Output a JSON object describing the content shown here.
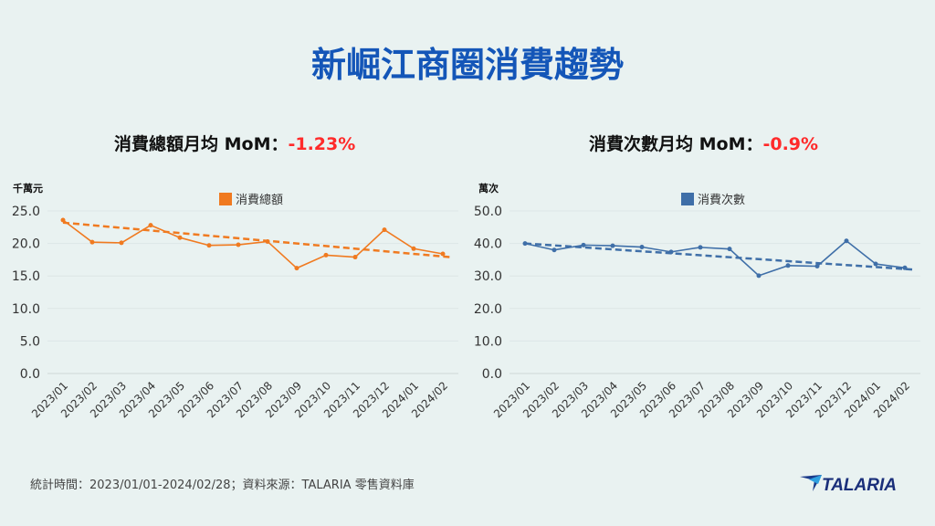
{
  "title": "新崛江商圈消費趨勢",
  "footer": "統計時間：2023/01/01-2024/02/28；資料來源：TALARIA 零售資料庫",
  "logo_text": "TALARIA",
  "chart_data": [
    {
      "type": "line",
      "subtitle": "消費總額月均  MoM：",
      "mom": "-1.23%",
      "ylabel": "千萬元",
      "categories": [
        "2023/01",
        "2023/02",
        "2023/03",
        "2023/04",
        "2023/05",
        "2023/06",
        "2023/07",
        "2023/08",
        "2023/09",
        "2023/10",
        "2023/11",
        "2023/12",
        "2024/01",
        "2024/02"
      ],
      "series": [
        {
          "name": "消費總額",
          "values": [
            23.6,
            20.2,
            20.1,
            22.8,
            20.9,
            19.7,
            19.8,
            20.3,
            16.2,
            18.2,
            17.9,
            22.1,
            19.2,
            18.4
          ]
        }
      ],
      "trendline": [
        23.2,
        17.9
      ],
      "ylim": [
        0,
        25
      ],
      "yticks": [
        "0.0",
        "5.0",
        "10.0",
        "15.0",
        "20.0",
        "25.0"
      ],
      "grid": true,
      "legend": "top-center",
      "color": "#f07a20"
    },
    {
      "type": "line",
      "subtitle": "消費次數月均  MoM：",
      "mom": "-0.9%",
      "ylabel": "萬次",
      "categories": [
        "2023/01",
        "2023/02",
        "2023/03",
        "2023/04",
        "2023/05",
        "2023/06",
        "2023/07",
        "2023/08",
        "2023/09",
        "2023/10",
        "2023/11",
        "2023/12",
        "2024/01",
        "2024/02"
      ],
      "series": [
        {
          "name": "消費次數",
          "values": [
            40.0,
            38.0,
            39.5,
            39.3,
            38.9,
            37.4,
            38.8,
            38.3,
            30.1,
            33.2,
            33.0,
            40.8,
            33.7,
            32.5
          ]
        }
      ],
      "trendline": [
        40.0,
        32.0
      ],
      "ylim": [
        0,
        50
      ],
      "yticks": [
        "0.0",
        "10.0",
        "20.0",
        "30.0",
        "40.0",
        "50.0"
      ],
      "grid": true,
      "legend": "top-center",
      "color": "#3f6fa8"
    }
  ]
}
